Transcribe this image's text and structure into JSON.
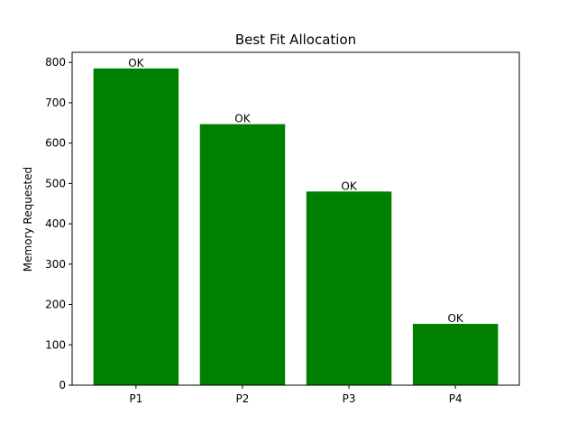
{
  "chart_data": {
    "type": "bar",
    "title": "Best Fit Allocation",
    "xlabel": "",
    "ylabel": "Memory Requested",
    "categories": [
      "P1",
      "P2",
      "P3",
      "P4"
    ],
    "values": [
      785,
      647,
      480,
      152
    ],
    "data_labels": [
      "OK",
      "OK",
      "OK",
      "OK"
    ],
    "ylim": [
      0,
      825
    ],
    "yticks": [
      0,
      100,
      200,
      300,
      400,
      500,
      600,
      700,
      800
    ],
    "bar_color": "#008000",
    "grid": false,
    "legend": "none"
  }
}
